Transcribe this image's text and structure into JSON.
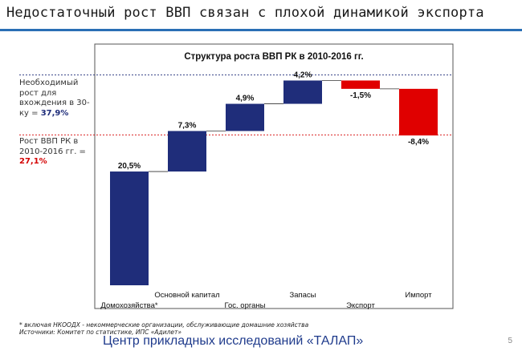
{
  "slide": {
    "title": "Недостаточный рост ВВП связан с плохой динамикой экспорта",
    "page_number": "5"
  },
  "side_notes": {
    "required_label": "Необходимый рост для вхождения в 30-ку = ",
    "required_value": "37,9%",
    "actual_label": "Рост ВВП РК в 2010-2016 гг. = ",
    "actual_value": "27,1%"
  },
  "chart_data": {
    "type": "bar",
    "subtype": "waterfall",
    "title": "Структура роста ВВП РК в 2010-2016 гг.",
    "categories": [
      "Домохозяйства*",
      "Основной капитал",
      "Гос. органы",
      "Запасы",
      "Экспорт",
      "Импорт"
    ],
    "values": [
      20.5,
      7.3,
      4.9,
      4.2,
      -1.5,
      -8.4
    ],
    "value_labels": [
      "20,5%",
      "7,3%",
      "4,9%",
      "4,2%",
      "-1,5%",
      "-8,4%"
    ],
    "reference_lines": [
      {
        "value": 37.9,
        "color": "#1f2d7a"
      },
      {
        "value": 27.1,
        "color": "#d40000"
      }
    ],
    "ylim": [
      0,
      40
    ],
    "colors": {
      "positive": "#1f2d7a",
      "negative": "#e00000"
    }
  },
  "footnotes": {
    "line1": "* включая НКООДХ - некоммерческие организации, обслуживающие домашние хозяйства",
    "line2": "Источники: Комитет по статистике, ИПС «Адилет»"
  },
  "org_name": "Центр прикладных исследований «ТАЛАП»"
}
